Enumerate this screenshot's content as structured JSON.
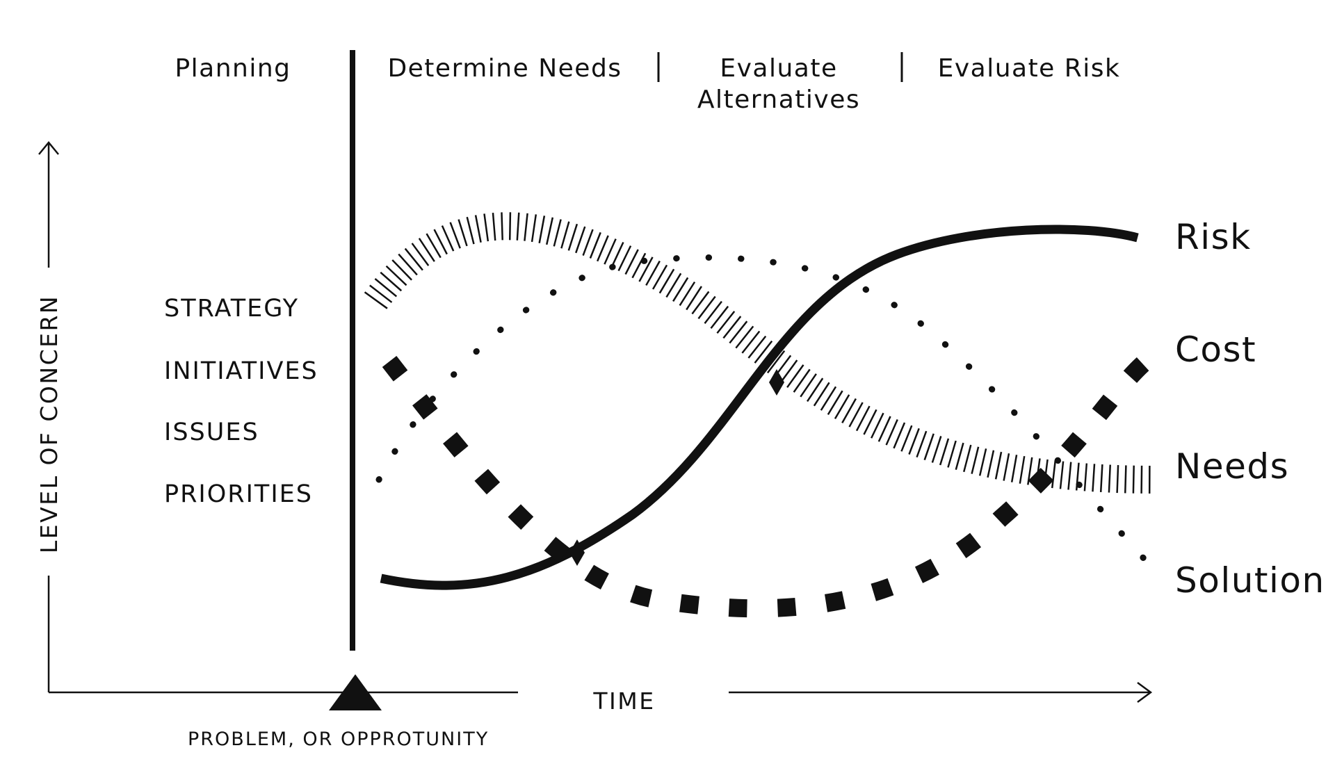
{
  "phases": {
    "planning": "Planning",
    "determine_needs": "Determine Needs",
    "evaluate_alternatives_line1": "Evaluate",
    "evaluate_alternatives_line2": "Alternatives",
    "evaluate_risk": "Evaluate Risk"
  },
  "categories": [
    "STRATEGY",
    "INITIATIVES",
    "ISSUES",
    "PRIORITIES"
  ],
  "series_labels": {
    "risk": "Risk",
    "cost": "Cost",
    "needs": "Needs",
    "solution": "Solution"
  },
  "axes": {
    "y_label": "LEVEL OF CONCERN",
    "x_label": "TIME",
    "marker_label": "PROBLEM, OR  OPPROTUNITY"
  },
  "colors": {
    "ink": "#111111",
    "background": "#ffffff"
  }
}
